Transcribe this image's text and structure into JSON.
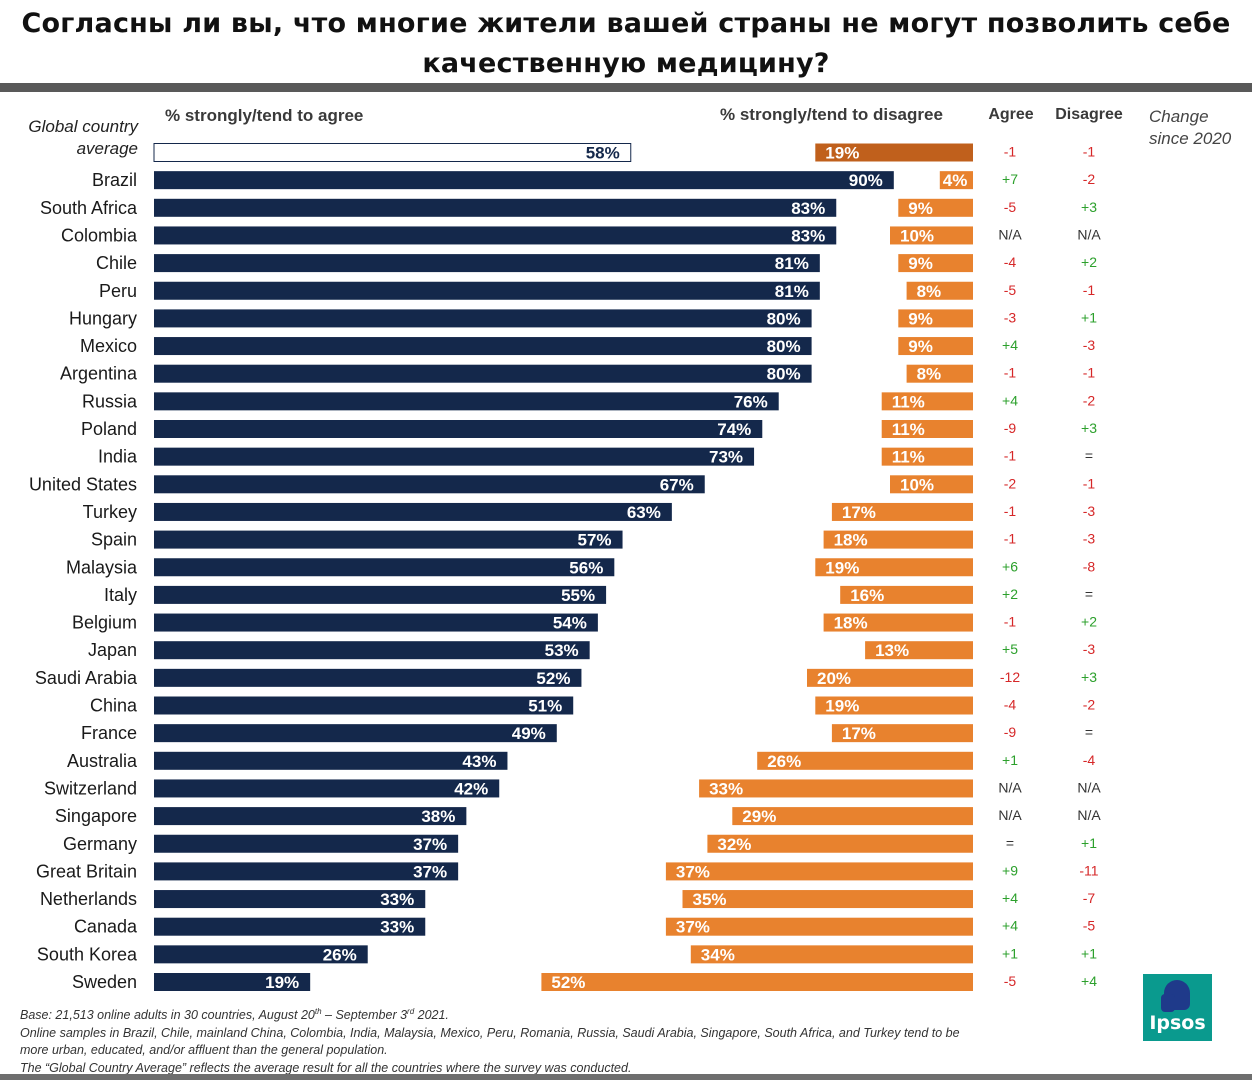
{
  "title_line1": "Согласны ли вы, что многие жители вашей страны не могут позволить себе",
  "title_line2": "качественную медицину?",
  "headers": {
    "agree": "% strongly/tend to agree",
    "disagree": "% strongly/tend to disagree",
    "agree_short": "Agree",
    "disagree_short": "Disagree",
    "change_line1": "Change",
    "change_line2": "since 2020"
  },
  "global_label_line1": "Global country",
  "global_label_line2": "average",
  "colors": {
    "agree_bar": "#14284b",
    "disagree_bar": "#e8822e",
    "global_disagree_bar": "#c0601c",
    "positive_change": "#2ca02c",
    "negative_change": "#d62728"
  },
  "chart_data": {
    "type": "bar",
    "categories": [
      "Global country average",
      "Brazil",
      "South Africa",
      "Colombia",
      "Chile",
      "Peru",
      "Hungary",
      "Mexico",
      "Argentina",
      "Russia",
      "Poland",
      "India",
      "United States",
      "Turkey",
      "Spain",
      "Malaysia",
      "Italy",
      "Belgium",
      "Japan",
      "Saudi Arabia",
      "China",
      "France",
      "Australia",
      "Switzerland",
      "Singapore",
      "Germany",
      "Great Britain",
      "Netherlands",
      "Canada",
      "South Korea",
      "Sweden"
    ],
    "series": [
      {
        "name": "% strongly/tend to agree",
        "values": [
          58,
          90,
          83,
          83,
          81,
          81,
          80,
          80,
          80,
          76,
          74,
          73,
          67,
          63,
          57,
          56,
          55,
          54,
          53,
          52,
          51,
          49,
          43,
          42,
          38,
          37,
          37,
          33,
          33,
          26,
          19
        ]
      },
      {
        "name": "% strongly/tend to disagree",
        "values": [
          19,
          4,
          9,
          10,
          9,
          8,
          9,
          9,
          8,
          11,
          11,
          11,
          10,
          17,
          18,
          19,
          16,
          18,
          13,
          20,
          19,
          17,
          26,
          33,
          29,
          32,
          37,
          35,
          37,
          34,
          52
        ]
      }
    ],
    "change_since_2020": {
      "agree": [
        "-1",
        "+7",
        "-5",
        "N/A",
        "-4",
        "-5",
        "-3",
        "+4",
        "-1",
        "+4",
        "-9",
        "-1",
        "-2",
        "-1",
        "-1",
        "+6",
        "+2",
        "-1",
        "+5",
        "-12",
        "-4",
        "-9",
        "+1",
        "N/A",
        "N/A",
        "=",
        "+9",
        "+4",
        "+4",
        "+1",
        "-5"
      ],
      "disagree": [
        "-1",
        "-2",
        "+3",
        "N/A",
        "+2",
        "-1",
        "+1",
        "-3",
        "-1",
        "-2",
        "+3",
        "=",
        "-1",
        "-3",
        "-3",
        "-8",
        "=",
        "+2",
        "-3",
        "+3",
        "-2",
        "=",
        "-4",
        "N/A",
        "N/A",
        "+1",
        "-11",
        "-7",
        "-5",
        "+1",
        "+4"
      ]
    }
  },
  "footnotes": [
    "Base: 21,513 online adults in 30 countries, August 20th – September 3rd 2021.",
    "Online samples in Brazil, Chile, mainland China, Colombia, India, Malaysia, Mexico, Peru, Romania, Russia, Saudi Arabia, Singapore, South Africa, and Turkey tend to be",
    "more urban, educated, and/or affluent than the general population.",
    "The “Global Country Average” reflects the average result for all the countries where the survey was conducted."
  ],
  "logo_text": "Ipsos"
}
